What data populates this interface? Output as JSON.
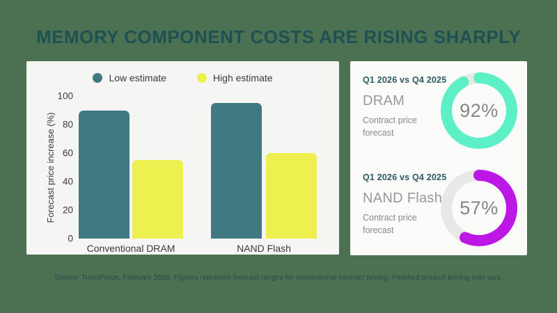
{
  "page": {
    "title": "MEMORY COMPONENT COSTS ARE RISING SHARPLY",
    "source_note": "Source: TrendForce, February 2026. Figures represent forecast ranges for conventional contract pricing. Finished product pricing may vary."
  },
  "colors": {
    "background": "#4B7152",
    "card": "#F5F5F3",
    "title_text": "#1D5153",
    "low_estimate_bar": "#417983",
    "high_estimate_bar": "#EDF04E",
    "dram_ring": "#5DEFC5",
    "nand_ring": "#BD17E8",
    "ring_track": "#E8E8E7",
    "percent_text": "#828688"
  },
  "chart_data": [
    {
      "type": "bar",
      "title": "",
      "categories": [
        "Conventional DRAM",
        "NAND Flash"
      ],
      "series": [
        {
          "name": "Low estimate",
          "color": "#417983",
          "values": [
            90,
            95
          ]
        },
        {
          "name": "High estimate",
          "color": "#EDF04E",
          "values": [
            55,
            60
          ]
        }
      ],
      "xlabel": "",
      "ylabel": "Forecast price increase (%)",
      "ylim": [
        0,
        100
      ],
      "yticks": [
        100,
        80,
        60,
        40,
        20,
        0
      ],
      "grid": false,
      "legend_position": "top"
    },
    {
      "type": "donut",
      "period": "Q1 2026 vs Q4 2025",
      "name": "DRAM",
      "description": "Contract price forecast",
      "value_pct": 92,
      "display": "92%",
      "color": "#5DEFC5"
    },
    {
      "type": "donut",
      "period": "Q1 2026 vs Q4 2025",
      "name": "NAND Flash",
      "description": "Contract price forecast",
      "value_pct": 57,
      "display": "57%",
      "color": "#BD17E8"
    }
  ]
}
